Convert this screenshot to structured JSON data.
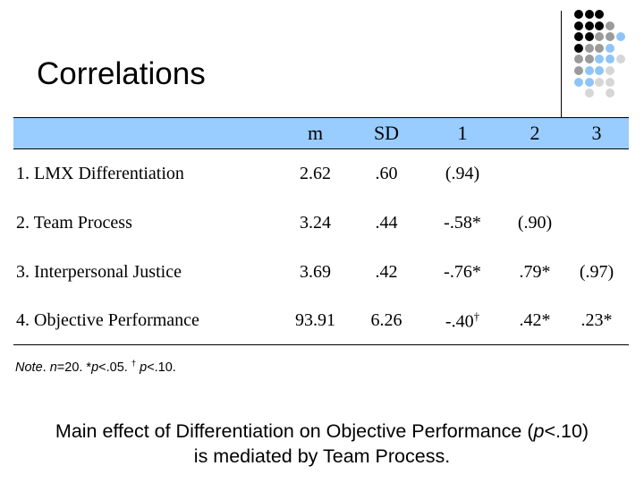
{
  "title": "Correlations",
  "table": {
    "headers": [
      "",
      "m",
      "SD",
      "1",
      "2",
      "3"
    ],
    "rows": [
      {
        "label": "1. LMX Differentiation",
        "cells": [
          "2.62",
          ".60",
          "(.94)",
          "",
          ""
        ]
      },
      {
        "label": "2. Team Process",
        "cells": [
          "3.24",
          ".44",
          "-.58*",
          "(.90)",
          ""
        ]
      },
      {
        "label": "3. Interpersonal Justice",
        "cells": [
          "3.69",
          ".42",
          "-.76*",
          ".79*",
          "(.97)"
        ]
      },
      {
        "label": "4. Objective Performance",
        "cells": [
          "93.91",
          "6.26",
          "-.40†",
          ".42*",
          ".23*"
        ]
      }
    ]
  },
  "note": {
    "segments": [
      {
        "text": "Note",
        "italic": true
      },
      {
        "text": ". ",
        "italic": false
      },
      {
        "text": "n",
        "italic": true
      },
      {
        "text": "=20. *",
        "italic": false
      },
      {
        "text": "p",
        "italic": true
      },
      {
        "text": "<.05. ",
        "italic": false
      },
      {
        "text": "†",
        "italic": false,
        "sup": true
      },
      {
        "text": " ",
        "italic": false
      },
      {
        "text": "p",
        "italic": true
      },
      {
        "text": "<.10.",
        "italic": false
      }
    ]
  },
  "caption": {
    "line1_segments": [
      {
        "text": "Main effect of Differentiation on Objective Performance (",
        "italic": false
      },
      {
        "text": "p",
        "italic": true
      },
      {
        "text": "<.10)",
        "italic": false
      }
    ],
    "line2": "is mediated by Team Process."
  },
  "colors": {
    "header_bg": "#99CCFF",
    "border": "#000000",
    "dot_black": "#000000",
    "dot_gray": "#9B9B9B",
    "dot_blue": "#8FC5F6",
    "dot_lightgray": "#D6D6D6"
  },
  "decoration": {
    "dot_rows": [
      [
        "k",
        "k",
        "k"
      ],
      [
        "k",
        "k",
        "k",
        "g"
      ],
      [
        "k",
        "k",
        "g",
        "g",
        "b"
      ],
      [
        "k",
        "g",
        "g",
        "b"
      ],
      [
        "g",
        "g",
        "b",
        "b",
        "l"
      ],
      [
        "g",
        "b",
        "b",
        "l"
      ],
      [
        "b",
        "b",
        "l",
        "l"
      ],
      [
        "",
        "l",
        "",
        "l"
      ]
    ]
  }
}
